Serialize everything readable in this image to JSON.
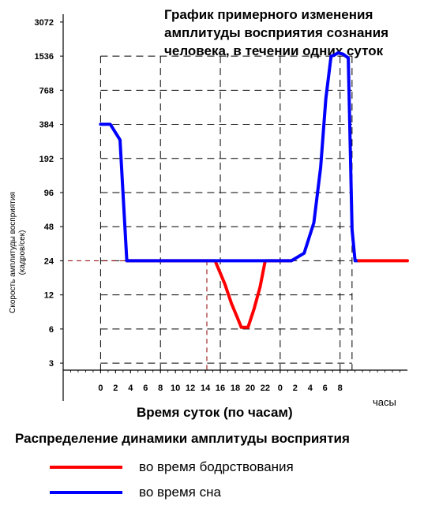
{
  "chart_data": {
    "type": "line",
    "title_lines": [
      "График  примерного  изменения",
      "амплитуды восприятия сознания",
      "человека, в течении одних суток"
    ],
    "ylabel_lines": [
      "Скорость амплитуды восприятия",
      "(кадров/сек)"
    ],
    "xlabel": "Время  суток  (по  часам)",
    "x_unit": "часы",
    "y_scale": "log2",
    "y_ticks": [
      3,
      6,
      12,
      24,
      48,
      96,
      192,
      384,
      768,
      1536,
      3072
    ],
    "y_tick_labels": [
      "3",
      "6",
      "12",
      "24",
      "48",
      "96",
      "192",
      "384",
      "768",
      "1536",
      "3072"
    ],
    "ylim": [
      2.6,
      3600
    ],
    "x_tick_labels": [
      "0",
      "2",
      "4",
      "6",
      "8",
      "10",
      "12",
      "14",
      "16",
      "18",
      "20",
      "22",
      "0",
      "2",
      "4",
      "6",
      "8"
    ],
    "x_hours_elapsed": [
      0,
      2,
      4,
      6,
      8,
      10,
      12,
      14,
      16,
      18,
      20,
      22,
      24,
      26,
      28,
      30,
      32
    ],
    "xlim": [
      -5,
      41
    ],
    "grid": true,
    "series": [
      {
        "name": "во  время  бодрствования",
        "color": "#ff0000",
        "x": [
          3.5,
          14.2,
          15.3,
          16.6,
          17.5,
          18.3,
          18.8,
          19.7,
          20.5,
          21.3,
          22,
          24,
          25.5
        ],
        "y": [
          24,
          24,
          24,
          15,
          10,
          7.5,
          6.2,
          6.2,
          9,
          14,
          24,
          24,
          24
        ]
      },
      {
        "name": "во  время  сна",
        "color": "#0000ff",
        "x": [
          0,
          1.3,
          2.6,
          3.5,
          24,
          25.5,
          27.2,
          28.5,
          29.4,
          30.1,
          30.8,
          31.2,
          31.7,
          32.4,
          33.1,
          33.6,
          34,
          34.5
        ],
        "y": [
          384,
          384,
          280,
          24,
          24,
          24,
          28,
          52,
          160,
          650,
          1536,
          1560,
          1640,
          1600,
          1480,
          45,
          24,
          24
        ]
      },
      {
        "name": "",
        "color": "#ff0000",
        "x": [
          34.5,
          41
        ],
        "y": [
          24,
          24
        ]
      }
    ],
    "legend_title": "Распределение  динамики  амплитуды  восприятия"
  }
}
